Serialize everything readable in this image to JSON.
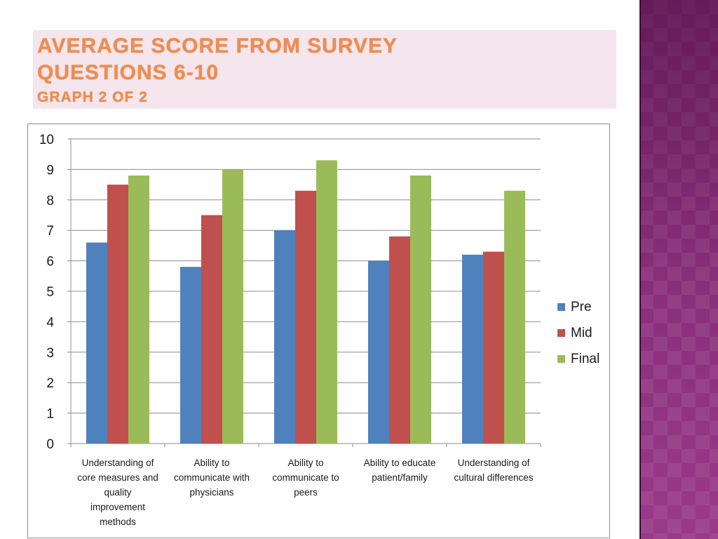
{
  "slide": {
    "title_line1": "Average score from survey",
    "title_line2": "questions 6-10",
    "title_line3": "Graph 2 of 2"
  },
  "chart_data": {
    "type": "bar",
    "categories": [
      "Understanding of core measures and quality improvement methods",
      "Ability to communicate with physicians",
      "Ability to communicate to peers",
      "Ability to educate patient/family",
      "Understanding of cultural differences"
    ],
    "category_lines": [
      [
        "Understanding of",
        "core measures and",
        "quality",
        "improvement",
        "methods"
      ],
      [
        "Ability to",
        "communicate with",
        "physicians"
      ],
      [
        "Ability to",
        "communicate to",
        "peers"
      ],
      [
        "Ability to educate",
        "patient/family"
      ],
      [
        "Understanding of",
        "cultural differences"
      ]
    ],
    "series": [
      {
        "name": "Pre",
        "color": "#4f81bd",
        "values": [
          6.6,
          5.8,
          7.0,
          6.0,
          6.2
        ]
      },
      {
        "name": "Mid",
        "color": "#c0504d",
        "values": [
          8.5,
          7.5,
          8.3,
          6.8,
          6.3
        ]
      },
      {
        "name": "Final",
        "color": "#9bbb59",
        "values": [
          8.8,
          9.0,
          9.3,
          8.8,
          8.3
        ]
      }
    ],
    "ylim": [
      0,
      10
    ],
    "yticks": [
      "0",
      "1",
      "2",
      "3",
      "4",
      "5",
      "6",
      "7",
      "8",
      "9",
      "10"
    ],
    "grid": true,
    "legend_position": "right"
  }
}
